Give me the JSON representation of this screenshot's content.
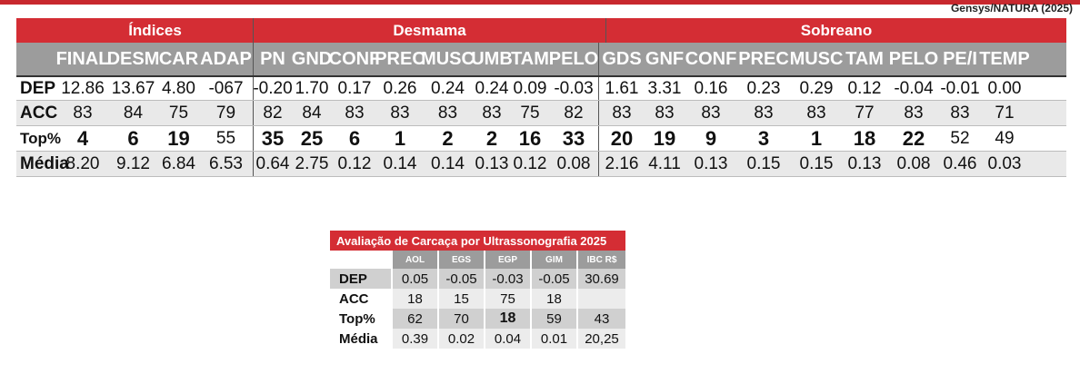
{
  "source": "Gensys/NATURA (2025)",
  "main_table": {
    "groups": [
      "Índices",
      "Desmama",
      "Sobreano"
    ],
    "headers": [
      "FINAL",
      "DESM",
      "CAR",
      "ADAP",
      "PN",
      "GND",
      "CONF",
      "PREC",
      "MUSC",
      "UMB",
      "TAM",
      "PELO",
      "GDS",
      "GNF",
      "CONF",
      "PREC",
      "MUSC",
      "TAM",
      "PELO",
      "PE/I",
      "TEMP"
    ],
    "rows": [
      {
        "label": "DEP",
        "values": [
          "12.86",
          "13.67",
          "4.80",
          "-067",
          "-0.20",
          "1.70",
          "0.17",
          "0.26",
          "0.24",
          "0.24",
          "0.09",
          "-0.03",
          "1.61",
          "3.31",
          "0.16",
          "0.23",
          "0.29",
          "0.12",
          "-0.04",
          "-0.01",
          "0.00"
        ]
      },
      {
        "label": "ACC",
        "values": [
          "83",
          "84",
          "75",
          "79",
          "82",
          "84",
          "83",
          "83",
          "83",
          "83",
          "75",
          "82",
          "83",
          "83",
          "83",
          "83",
          "83",
          "77",
          "83",
          "83",
          "71"
        ]
      },
      {
        "label": "Top%",
        "values": [
          "4",
          "6",
          "19",
          "55",
          "35",
          "25",
          "6",
          "1",
          "2",
          "2",
          "16",
          "33",
          "20",
          "19",
          "9",
          "3",
          "1",
          "18",
          "22",
          "52",
          "49"
        ]
      },
      {
        "label": "Média",
        "values": [
          "8.20",
          "9.12",
          "6.84",
          "6.53",
          "0.64",
          "2.75",
          "0.12",
          "0.14",
          "0.14",
          "0.13",
          "0.12",
          "0.08",
          "2.16",
          "4.11",
          "0.13",
          "0.15",
          "0.15",
          "0.13",
          "0.08",
          "0.46",
          "0.03"
        ]
      }
    ]
  },
  "carcass_table": {
    "title": "Avaliação de Carcaça por Ultrassonografia 2025",
    "headers": [
      "AOL",
      "EGS",
      "EGP",
      "GIM",
      "IBC R$"
    ],
    "rows": [
      {
        "label": "DEP",
        "values": [
          "0.05",
          "-0.05",
          "-0.03",
          "-0.05",
          "30.69"
        ]
      },
      {
        "label": "ACC",
        "values": [
          "18",
          "15",
          "75",
          "18",
          ""
        ]
      },
      {
        "label": "Top%",
        "values": [
          "62",
          "70",
          "18",
          "59",
          "43"
        ]
      },
      {
        "label": "Média",
        "values": [
          "0.39",
          "0.02",
          "0.04",
          "0.01",
          "20,25"
        ]
      }
    ]
  },
  "colors": {
    "accent_red": "#d42d34",
    "header_gray": "#9c9c9c",
    "row_shade": "#e9e9e9"
  }
}
